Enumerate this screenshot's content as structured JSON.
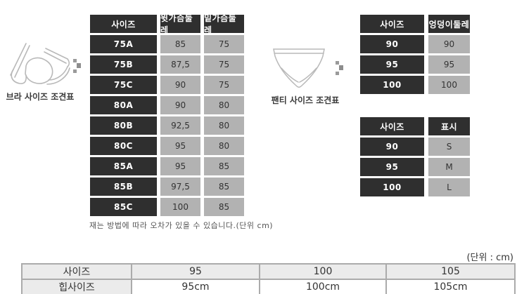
{
  "bra_section": {
    "caption": "브라 사이즈 조견표",
    "table": {
      "headers": [
        "사이즈",
        "윗가슴둘레",
        "밑가슴둘레"
      ],
      "rows": [
        [
          "75A",
          "85",
          "75"
        ],
        [
          "75B",
          "87,5",
          "75"
        ],
        [
          "75C",
          "90",
          "75"
        ],
        [
          "80A",
          "90",
          "80"
        ],
        [
          "80B",
          "92,5",
          "80"
        ],
        [
          "80C",
          "95",
          "80"
        ],
        [
          "85A",
          "95",
          "85"
        ],
        [
          "85B",
          "97,5",
          "85"
        ],
        [
          "85C",
          "100",
          "85"
        ]
      ]
    },
    "note": "재는 방법에 따라 오차가 있을 수 있습니다.(단위 cm)"
  },
  "panty_section": {
    "caption": "팬티 사이즈 조견표",
    "hip_table": {
      "headers": [
        "사이즈",
        "엉덩이둘레"
      ],
      "rows": [
        [
          "90",
          "90"
        ],
        [
          "95",
          "95"
        ],
        [
          "100",
          "100"
        ]
      ]
    },
    "label_table": {
      "headers": [
        "사이즈",
        "표시"
      ],
      "rows": [
        [
          "90",
          "S"
        ],
        [
          "95",
          "M"
        ],
        [
          "100",
          "L"
        ]
      ]
    }
  },
  "bottom_section": {
    "unit_label": "(단위 : cm)",
    "table": {
      "rows": [
        [
          "사이즈",
          "95",
          "100",
          "105"
        ],
        [
          "힙사이즈",
          "95cm",
          "100cm",
          "105cm"
        ]
      ]
    }
  },
  "icons": {
    "arrow": "chevron-right",
    "bra": "bra-line-drawing",
    "panty": "panty-line-drawing"
  },
  "colors": {
    "dark_cell": "#2f2f2f",
    "gray_cell": "#b2b2b2",
    "light_cell": "#ebebeb",
    "table_border": "#ababab",
    "illustration_stroke": "#b9b9b9",
    "arrow_gray": "#999999"
  }
}
